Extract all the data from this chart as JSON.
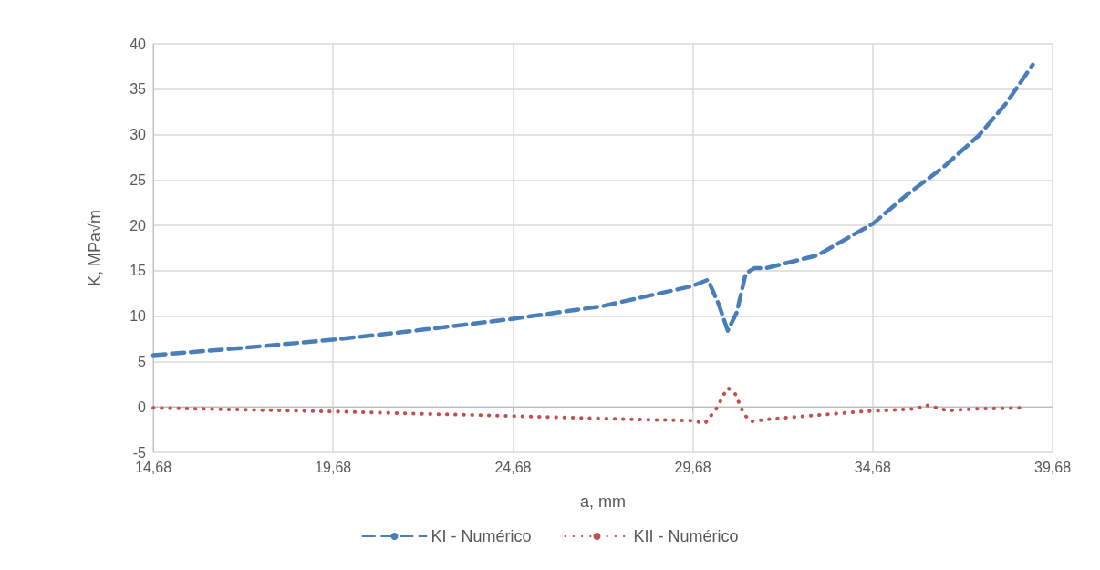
{
  "chart_data": {
    "type": "line",
    "xlabel": "a, mm",
    "ylabel": "K, MPa√m",
    "xlim": [
      14.68,
      39.68
    ],
    "xticks": [
      {
        "value": 14.68,
        "label": "14,68"
      },
      {
        "value": 19.68,
        "label": "19,68"
      },
      {
        "value": 24.68,
        "label": "24,68"
      },
      {
        "value": 29.68,
        "label": "29,68"
      },
      {
        "value": 34.68,
        "label": "34,68"
      },
      {
        "value": 39.68,
        "label": "39,68"
      }
    ],
    "ylim": [
      -5,
      40
    ],
    "yticks": [
      -5,
      0,
      5,
      10,
      15,
      20,
      25,
      30,
      35,
      40
    ],
    "grid": true,
    "legend": "bottom",
    "marker": "none",
    "series": [
      {
        "name": "KI - Numérico",
        "color": "#4a7ebb",
        "line_style": "dashed",
        "x": [
          14.68,
          17.18,
          19.68,
          22.17,
          24.66,
          27.16,
          29.65,
          30.1,
          30.4,
          30.65,
          30.9,
          31.15,
          31.4,
          31.72,
          33.14,
          34.69,
          35.64,
          36.64,
          37.63,
          38.38,
          39.13
        ],
        "values": [
          5.7,
          6.5,
          7.4,
          8.5,
          9.7,
          11.1,
          13.3,
          14.0,
          11.3,
          8.4,
          10.4,
          14.7,
          15.3,
          15.3,
          16.7,
          20.2,
          23.4,
          26.4,
          29.9,
          33.4,
          37.7
        ]
      },
      {
        "name": "KII - Numérico",
        "color": "#c0504d",
        "line_style": "dotted",
        "x": [
          14.68,
          19.68,
          24.66,
          28.4,
          29.65,
          30.02,
          30.37,
          30.5,
          30.65,
          30.85,
          30.97,
          31.1,
          31.3,
          31.9,
          33.14,
          34.39,
          35.89,
          36.16,
          36.76,
          37.63,
          38.88
        ],
        "values": [
          -0.1,
          -0.5,
          -1.0,
          -1.4,
          -1.5,
          -1.8,
          0,
          1.1,
          2.1,
          1.5,
          0.4,
          -0.8,
          -1.6,
          -1.3,
          -0.9,
          -0.5,
          -0.2,
          0.2,
          -0.4,
          -0.2,
          -0.1
        ]
      }
    ]
  }
}
